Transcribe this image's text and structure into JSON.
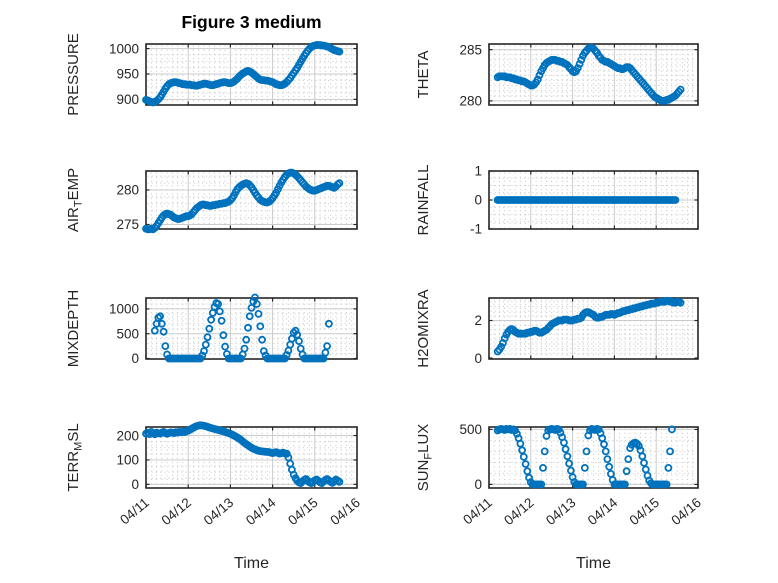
{
  "figure_title": "Figure 3 medium",
  "chart_data": {
    "type": "scatter",
    "grid": true,
    "minor_grid": true,
    "legend": "none",
    "marker": {
      "shape": "circle-open",
      "color": "#0072BD",
      "radius_px": 3,
      "stroke_px": 1.8
    },
    "axis_color": "#262626",
    "major_grid_color": "#cbcbcb",
    "minor_grid_color": "#c3c3c3",
    "x_axis": {
      "label": "Time",
      "tick_labels": [
        "04/11",
        "04/12",
        "04/13",
        "04/14",
        "04/15",
        "04/16"
      ],
      "range_days": 5,
      "tick_label_rotation_deg": -40
    },
    "x_encoding": {
      "start_hour": 0,
      "step_hours": 1,
      "count": 111,
      "note": "hours after 04/11 00:00; null = no sample"
    },
    "subplots": [
      {
        "name": "pressure",
        "ylabel": "PRESSURE",
        "ylabel_parts": [
          {
            "text": "PRESSURE"
          }
        ],
        "ylim": [
          889,
          1009
        ],
        "minor_step": 12.5,
        "yticks": {
          "values": [
            900,
            950,
            1000
          ],
          "labels": [
            "900",
            "950",
            "1000"
          ]
        },
        "values": [
          899,
          898,
          896,
          895,
          894,
          895,
          897,
          900,
          904,
          909,
          915,
          921,
          926,
          930,
          932,
          933,
          934,
          934,
          933,
          932,
          931,
          930,
          930,
          929,
          929,
          929,
          928,
          928,
          927,
          927,
          928,
          929,
          930,
          931,
          931,
          930,
          929,
          928,
          928,
          929,
          930,
          931,
          932,
          933,
          934,
          934,
          933,
          932,
          932,
          933,
          935,
          938,
          941,
          945,
          948,
          951,
          953,
          955,
          956,
          955,
          953,
          950,
          947,
          944,
          941,
          939,
          938,
          938,
          937,
          937,
          936,
          935,
          934,
          932,
          930,
          929,
          928,
          928,
          929,
          931,
          934,
          938,
          942,
          947,
          952,
          957,
          962,
          968,
          974,
          980,
          986,
          991,
          996,
          1000,
          1003,
          1005,
          1006,
          1007,
          1007,
          1007,
          1006,
          1006,
          1005,
          1004,
          1003,
          1001,
          999,
          997,
          996,
          995,
          994
        ]
      },
      {
        "name": "theta",
        "ylabel": "THETA",
        "ylabel_parts": [
          {
            "text": "THETA"
          }
        ],
        "ylim": [
          279.6,
          285.55
        ],
        "minor_step": 0.5,
        "yticks": {
          "values": [
            280,
            285
          ],
          "labels": [
            "280",
            "285"
          ]
        },
        "values": [
          null,
          null,
          null,
          null,
          null,
          282.3,
          282.4,
          282.4,
          282.4,
          282.4,
          282.3,
          282.3,
          282.3,
          282.2,
          282.2,
          282.1,
          282.1,
          282.0,
          282.0,
          281.9,
          281.9,
          281.8,
          281.7,
          281.6,
          281.5,
          281.5,
          281.6,
          281.8,
          282.1,
          282.5,
          282.9,
          283.2,
          283.5,
          283.7,
          283.8,
          283.9,
          284.0,
          284.0,
          284.0,
          283.9,
          283.9,
          283.8,
          283.8,
          283.7,
          283.6,
          283.5,
          283.3,
          283.1,
          282.9,
          282.8,
          282.9,
          283.2,
          283.6,
          284.0,
          284.4,
          284.7,
          284.9,
          285.1,
          285.2,
          285.2,
          285.1,
          284.9,
          284.7,
          284.4,
          284.2,
          284.0,
          283.9,
          283.8,
          283.8,
          283.7,
          283.6,
          283.5,
          283.4,
          283.3,
          283.2,
          283.2,
          283.1,
          283.1,
          283.2,
          283.3,
          283.3,
          283.2,
          283.0,
          282.8,
          282.6,
          282.4,
          282.2,
          282.0,
          281.8,
          281.6,
          281.4,
          281.2,
          281.0,
          280.8,
          280.6,
          280.4,
          280.3,
          280.2,
          280.1,
          280.0,
          280.0,
          280.0,
          280.1,
          280.1,
          280.2,
          280.3,
          280.4,
          280.5,
          280.7,
          280.9,
          281.1
        ]
      },
      {
        "name": "air_temp",
        "ylabel": "AIR_TEMP",
        "ylabel_parts": [
          {
            "text": "AIR"
          },
          {
            "text": "T",
            "sub": true
          },
          {
            "text": "EMP"
          }
        ],
        "ylim": [
          274.35,
          282.75
        ],
        "minor_step": 1,
        "yticks": {
          "values": [
            275,
            280
          ],
          "labels": [
            "275",
            "280"
          ]
        },
        "values": [
          274.4,
          274.3,
          274.3,
          274.4,
          274.3,
          274.5,
          274.8,
          275.2,
          275.6,
          276.0,
          276.3,
          276.5,
          276.6,
          276.5,
          276.4,
          276.2,
          276.0,
          275.9,
          275.8,
          275.8,
          275.9,
          276.0,
          276.1,
          276.2,
          276.2,
          276.3,
          276.5,
          276.8,
          277.1,
          277.4,
          277.6,
          277.8,
          277.9,
          277.9,
          277.8,
          277.8,
          277.7,
          277.7,
          277.8,
          277.8,
          277.9,
          277.9,
          278.0,
          278.0,
          278.1,
          278.1,
          278.2,
          278.3,
          278.5,
          278.8,
          279.2,
          279.7,
          280.1,
          280.4,
          280.6,
          280.8,
          280.9,
          281.0,
          280.9,
          280.7,
          280.4,
          280.0,
          279.6,
          279.2,
          278.9,
          278.6,
          278.4,
          278.3,
          278.2,
          278.2,
          278.3,
          278.5,
          278.8,
          279.2,
          279.6,
          280.1,
          280.6,
          281.1,
          281.5,
          281.9,
          282.2,
          282.4,
          282.5,
          282.5,
          282.4,
          282.2,
          282.0,
          281.7,
          281.4,
          281.1,
          280.8,
          280.5,
          280.3,
          280.1,
          280.0,
          279.9,
          279.9,
          280.0,
          280.1,
          280.2,
          280.3,
          280.4,
          280.5,
          280.6,
          280.6,
          280.5,
          280.4,
          280.3,
          280.5,
          280.8,
          281.0
        ]
      },
      {
        "name": "rainfall",
        "ylabel": "RAINFALL",
        "ylabel_parts": [
          {
            "text": "RAINFALL"
          }
        ],
        "ylim": [
          -1,
          1
        ],
        "minor_step": 0.25,
        "yticks": {
          "values": [
            -1,
            0,
            1
          ],
          "labels": [
            "-1",
            "0",
            "1"
          ]
        },
        "values": [
          null,
          null,
          null,
          null,
          null,
          0,
          0,
          0,
          0,
          0,
          0,
          0,
          0,
          0,
          0,
          0,
          0,
          0,
          0,
          0,
          0,
          0,
          0,
          0,
          0,
          0,
          0,
          0,
          0,
          0,
          0,
          0,
          0,
          0,
          0,
          0,
          0,
          0,
          0,
          0,
          0,
          0,
          0,
          0,
          0,
          0,
          0,
          0,
          0,
          0,
          0,
          0,
          0,
          0,
          0,
          0,
          0,
          0,
          0,
          0,
          0,
          0,
          0,
          0,
          0,
          0,
          0,
          0,
          0,
          0,
          0,
          0,
          0,
          0,
          0,
          0,
          0,
          0,
          0,
          0,
          0,
          0,
          0,
          0,
          0,
          0,
          0,
          0,
          0,
          0,
          0,
          0,
          0,
          0,
          0,
          0,
          0,
          0,
          0,
          0,
          0,
          0,
          0,
          0,
          0,
          0,
          0,
          0,
          null,
          null,
          null
        ]
      },
      {
        "name": "mixdepth",
        "ylabel": "MIXDEPTH",
        "ylabel_parts": [
          {
            "text": "MIXDEPTH"
          }
        ],
        "ylim": [
          -10,
          1220
        ],
        "minor_step": 100,
        "yticks": {
          "values": [
            0,
            500,
            1000
          ],
          "labels": [
            "0",
            "500",
            "1000"
          ]
        },
        "values": [
          null,
          null,
          null,
          null,
          null,
          560,
          700,
          820,
          850,
          700,
          540,
          250,
          80,
          0,
          0,
          0,
          0,
          0,
          0,
          0,
          0,
          0,
          0,
          0,
          0,
          0,
          0,
          0,
          0,
          0,
          0,
          0,
          60,
          150,
          280,
          430,
          600,
          780,
          920,
          1040,
          1120,
          1100,
          950,
          760,
          470,
          240,
          90,
          0,
          0,
          0,
          0,
          0,
          0,
          0,
          0,
          80,
          200,
          380,
          620,
          850,
          1020,
          1150,
          1230,
          1100,
          900,
          650,
          380,
          150,
          60,
          0,
          0,
          0,
          0,
          0,
          0,
          0,
          0,
          0,
          0,
          0,
          70,
          160,
          280,
          400,
          520,
          560,
          480,
          350,
          200,
          80,
          0,
          0,
          0,
          0,
          0,
          0,
          0,
          0,
          0,
          0,
          0,
          0,
          120,
          250,
          700,
          null,
          null,
          null,
          null,
          null,
          null
        ]
      },
      {
        "name": "h2omixra",
        "ylabel": "H2OMIXRA",
        "ylabel_parts": [
          {
            "text": "H2OMIXRA"
          }
        ],
        "ylim": [
          -0.05,
          3.2
        ],
        "minor_step": 0.25,
        "yticks": {
          "values": [
            0,
            2
          ],
          "labels": [
            "0",
            "2"
          ]
        },
        "values": [
          null,
          null,
          null,
          null,
          null,
          0.35,
          0.45,
          0.6,
          0.8,
          1.05,
          1.25,
          1.4,
          1.5,
          1.55,
          1.5,
          1.4,
          1.35,
          1.3,
          1.3,
          1.3,
          1.3,
          1.3,
          1.35,
          1.35,
          1.4,
          1.4,
          1.45,
          1.45,
          1.4,
          1.35,
          1.35,
          1.4,
          1.45,
          1.5,
          1.6,
          1.7,
          1.8,
          1.85,
          1.9,
          1.95,
          2.0,
          2.0,
          2.0,
          2.05,
          2.05,
          2.05,
          2.0,
          2.0,
          2.0,
          2.05,
          2.05,
          2.1,
          2.1,
          2.15,
          2.3,
          2.4,
          2.45,
          2.45,
          2.4,
          2.35,
          2.3,
          2.2,
          2.15,
          2.15,
          2.2,
          2.2,
          2.25,
          2.3,
          2.3,
          2.3,
          2.35,
          2.35,
          2.3,
          2.35,
          2.4,
          2.4,
          2.45,
          2.5,
          2.5,
          2.55,
          2.55,
          2.6,
          2.6,
          2.65,
          2.65,
          2.7,
          2.7,
          2.75,
          2.75,
          2.8,
          2.8,
          2.85,
          2.85,
          2.9,
          2.9,
          2.9,
          2.95,
          2.95,
          3.0,
          3.0,
          3.0,
          3.0,
          3.05,
          3.05,
          3.0,
          3.0,
          2.95,
          2.95,
          3.0,
          3.0,
          2.95
        ]
      },
      {
        "name": "terr_msl",
        "ylabel": "TERR_MSL",
        "ylabel_parts": [
          {
            "text": "TERR"
          },
          {
            "text": "M",
            "sub": true
          },
          {
            "text": "SL"
          }
        ],
        "ylim": [
          -15,
          235
        ],
        "minor_step": 25,
        "yticks": {
          "values": [
            0,
            100,
            200
          ],
          "labels": [
            "0",
            "100",
            "200"
          ]
        },
        "values": [
          208,
          212,
          206,
          215,
          210,
          205,
          212,
          210,
          208,
          212,
          215,
          210,
          207,
          210,
          213,
          212,
          210,
          214,
          212,
          215,
          213,
          216,
          214,
          218,
          220,
          224,
          228,
          232,
          236,
          239,
          241,
          242,
          241,
          240,
          238,
          236,
          233,
          231,
          229,
          227,
          225,
          223,
          221,
          219,
          217,
          215,
          212,
          210,
          207,
          204,
          200,
          196,
          192,
          187,
          182,
          176,
          170,
          165,
          160,
          155,
          150,
          146,
          143,
          140,
          138,
          136,
          135,
          134,
          133,
          133,
          132,
          130,
          128,
          130,
          132,
          129,
          126,
          128,
          130,
          127,
          125,
          110,
          85,
          60,
          40,
          25,
          15,
          8,
          5,
          12,
          18,
          22,
          15,
          8,
          5,
          10,
          16,
          20,
          14,
          8,
          5,
          12,
          18,
          22,
          16,
          10,
          6,
          12,
          20,
          15,
          10
        ]
      },
      {
        "name": "sun_flux",
        "ylabel": "SUN_FLUX",
        "ylabel_parts": [
          {
            "text": "SUN"
          },
          {
            "text": "F",
            "sub": true
          },
          {
            "text": "LUX"
          }
        ],
        "ylim": [
          -33,
          522
        ],
        "minor_step": 100,
        "yticks": {
          "values": [
            0,
            500
          ],
          "labels": [
            "0",
            "500"
          ]
        },
        "values": [
          null,
          null,
          null,
          null,
          null,
          490,
          500,
          505,
          500,
          495,
          505,
          500,
          505,
          495,
          500,
          490,
          460,
          420,
          370,
          310,
          250,
          185,
          120,
          60,
          20,
          0,
          0,
          0,
          0,
          0,
          0,
          150,
          300,
          440,
          490,
          500,
          505,
          500,
          495,
          505,
          500,
          470,
          430,
          380,
          320,
          255,
          190,
          125,
          65,
          20,
          0,
          0,
          0,
          0,
          0,
          150,
          300,
          445,
          490,
          505,
          500,
          495,
          505,
          500,
          465,
          420,
          365,
          300,
          230,
          160,
          95,
          40,
          0,
          0,
          0,
          0,
          0,
          0,
          0,
          120,
          230,
          330,
          360,
          375,
          380,
          370,
          350,
          310,
          255,
          195,
          135,
          80,
          35,
          10,
          0,
          0,
          0,
          0,
          0,
          0,
          0,
          0,
          0,
          150,
          300,
          500,
          null,
          null,
          null,
          null,
          null
        ]
      }
    ]
  }
}
